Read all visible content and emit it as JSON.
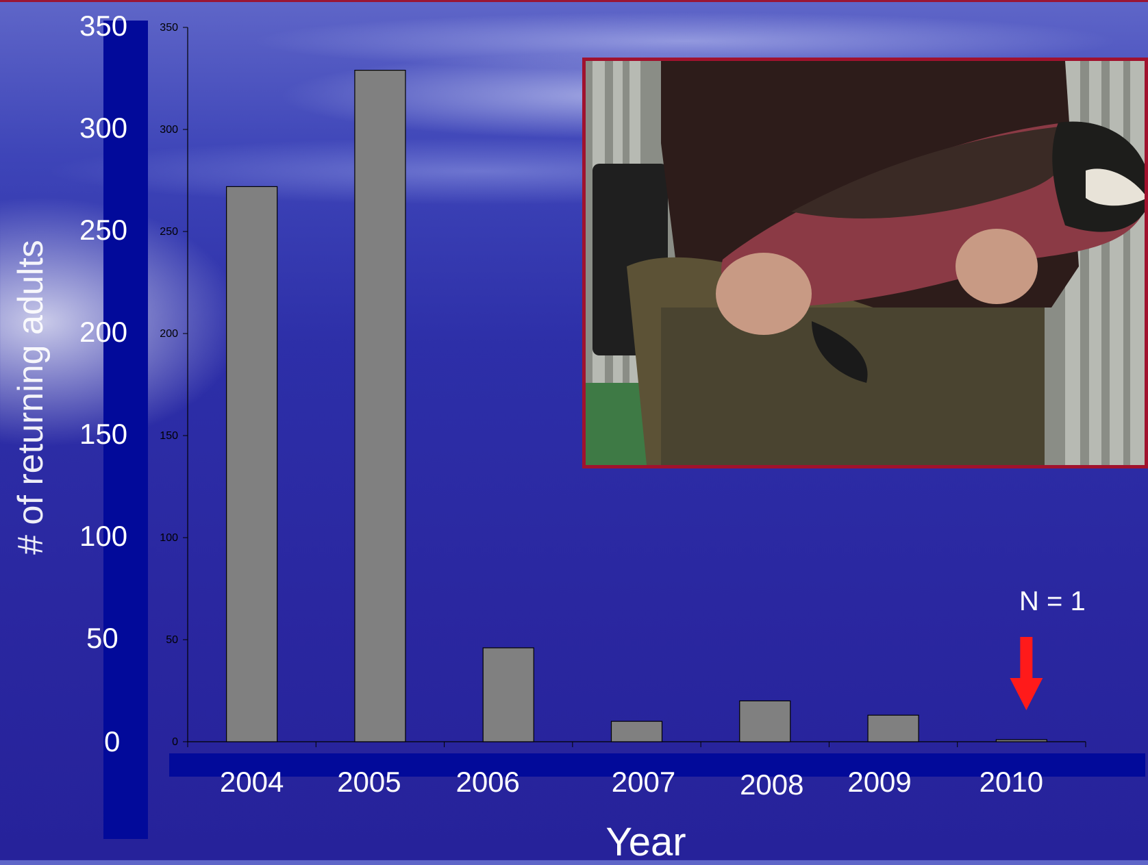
{
  "chart_data": {
    "type": "bar",
    "title": "",
    "xlabel": "Year",
    "ylabel": "# of returning adults",
    "categories": [
      "2004",
      "2005",
      "2006",
      "2007",
      "2008",
      "2009",
      "2010"
    ],
    "values": [
      272,
      329,
      46,
      10,
      20,
      13,
      1
    ],
    "ylim": [
      0,
      350
    ],
    "y_ticks": [
      "0",
      "50",
      "100",
      "150",
      "200",
      "250",
      "300",
      "350"
    ],
    "bar_color": "#808080",
    "grid": false,
    "annotation": "N = 1",
    "annotation_arrow_color": "#ff1a1a"
  },
  "photo": {
    "description_icon": "photo-fish-held"
  }
}
